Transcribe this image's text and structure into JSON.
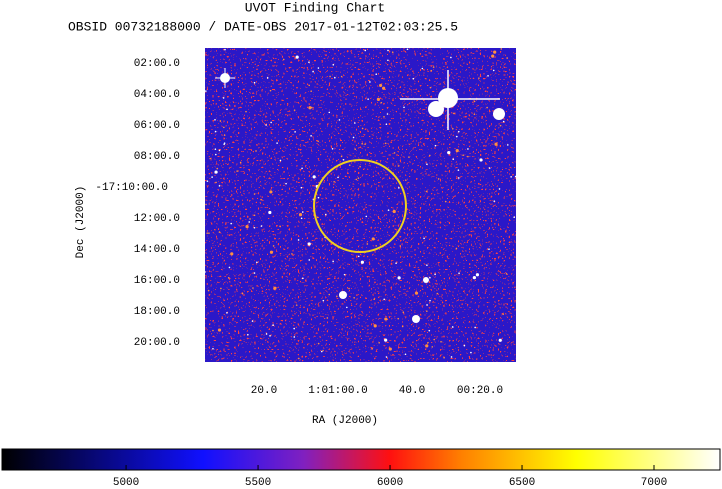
{
  "title": "UVOT Finding Chart",
  "subtitle": "OBSID 00732188000 / DATE-OBS 2017-01-12T02:03:25.5",
  "image": {
    "xlabel": "RA (J2000)",
    "ylabel": "Dec (J2000)",
    "xticks": [
      "20.0",
      "1:01:00.0",
      "40.0",
      "00:20.0"
    ],
    "yticks": [
      "02:00.0",
      "04:00.0",
      "06:00.0",
      "08:00.0",
      "-17:10:00.0",
      "12:00.0",
      "14:00.0",
      "16:00.0",
      "18:00.0",
      "20:00.0"
    ]
  },
  "colorbar": {
    "range": [
      4530,
      7250
    ],
    "ticks": [
      5000,
      5500,
      6000,
      6500,
      7000
    ]
  }
}
